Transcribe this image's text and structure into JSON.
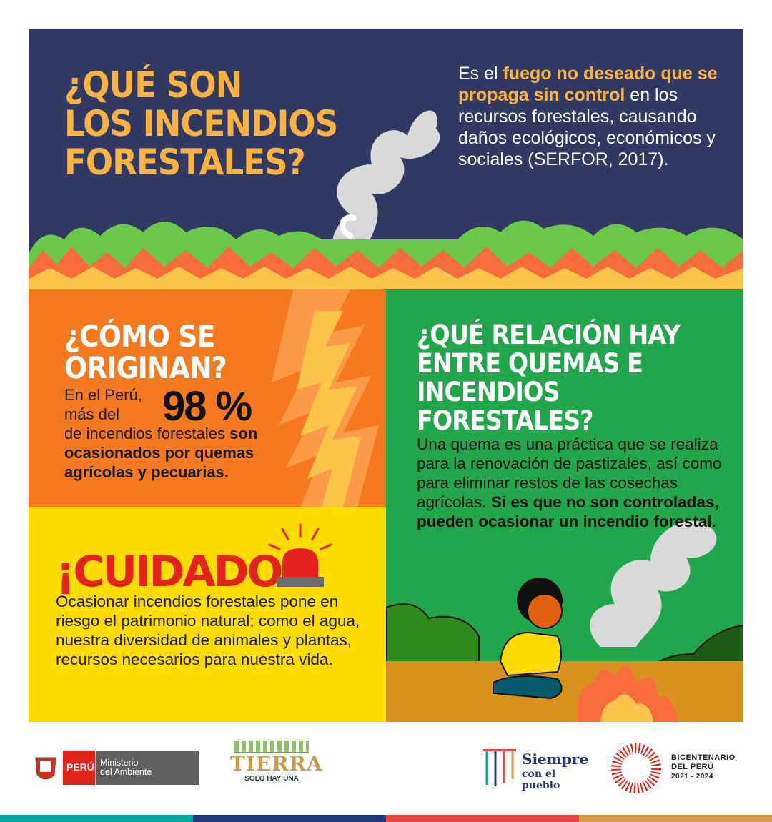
{
  "top": {
    "title_lines": [
      "¿QUÉ SON",
      "LOS INCENDIOS",
      "FORESTALES?"
    ],
    "desc_pre": "Es el ",
    "desc_hl": "fuego no deseado que se propaga sin control",
    "desc_post": " en los recursos forestales, causando daños ecológicos, económicos y sociales (SERFOR, 2017)."
  },
  "orange": {
    "title_lines": [
      "¿CÓMO SE",
      "ORIGINAN?"
    ],
    "line1": "En el Perú,",
    "line2": "más del",
    "pct": "98 %",
    "rest": "de incendios forestales ",
    "bold": "son ocasionados por quemas agrícolas y pecuarias."
  },
  "yellow": {
    "title": "¡CUIDADO!",
    "body": "Ocasionar incendios forestales pone en riesgo el patrimonio natural; como el agua, nuestra diversidad de animales y plantas, recursos necesarios para nuestra vida.",
    "icon": "siren-icon"
  },
  "green": {
    "title_lines": [
      "¿QUÉ RELACIÓN HAY",
      "ENTRE QUEMAS E",
      "INCENDIOS",
      "FORESTALES?"
    ],
    "body": "Una quema es una práctica que se realiza para la renovación de pastizales, así como para eliminar restos de las cosechas agrícolas. ",
    "bold": "Si es que no son controladas, pueden ocasionar un incendio forestal."
  },
  "footer": {
    "peru": "PERÚ",
    "ministerio": "Ministerio",
    "ambiente": "del Ambiente",
    "tierra": "TIERRA",
    "solo": "SOLO HAY UNA",
    "siempre": "Siempre",
    "pueblo": "con el pueblo",
    "bic1": "BICENTENARIO",
    "bic2": "DEL PERÚ",
    "bic3": "2021 - 2024"
  },
  "colors": {
    "navy": "#323962",
    "orange": "#f57a1f",
    "yellow": "#fedc00",
    "green": "#22a64b",
    "title": "#fbb33f",
    "stripes": [
      "#00a99d",
      "#263c7a",
      "#e84545",
      "#d99a4a"
    ]
  }
}
